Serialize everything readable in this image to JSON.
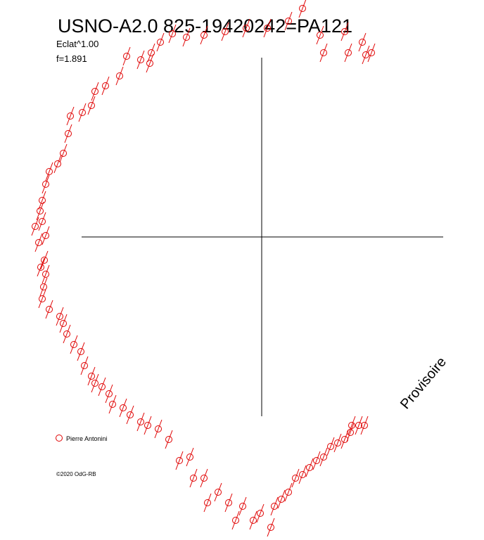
{
  "chart_data": {
    "type": "scatter",
    "title": "USNO-A2.0 825-19420242=PA121",
    "subtitle": "Eclat^1.00",
    "annotations": [
      "f=1.891",
      "©2020 OdG-RB",
      "Provisoire"
    ],
    "xlim": [
      -372,
      316
    ],
    "ylim": [
      -431,
      337
    ],
    "series": [
      {
        "name": "Pierre Antonini",
        "color": "#e00000",
        "x": [
          58,
          83,
          88,
          118,
          123,
          148,
          143,
          156,
          38,
          8,
          -22,
          -52,
          -82,
          -107,
          -127,
          -144,
          -157,
          -172,
          -159,
          -192,
          -202,
          -222,
          -237,
          -242,
          -255,
          -272,
          -275,
          -282,
          -290,
          -302,
          -307,
          -312,
          -315,
          -312,
          -322,
          -307,
          -317,
          -309,
          -314,
          -307,
          -310,
          -312,
          -302,
          -287,
          -282,
          -277,
          -267,
          -257,
          -252,
          -242,
          -237,
          -227,
          -217,
          -212,
          -197,
          -187,
          -172,
          -162,
          -147,
          -132,
          -117,
          -102,
          -97,
          -82,
          -77,
          -62,
          -47,
          -37,
          -27,
          -12,
          -2,
          13,
          18,
          28,
          38,
          48,
          58,
          68,
          78,
          88,
          98,
          108,
          118,
          126,
          128,
          138,
          146
        ],
        "values": [
          325,
          287,
          262,
          292,
          262,
          259,
          277,
          262,
          307,
          297,
          297,
          292,
          287,
          284,
          289,
          277,
          262,
          252,
          247,
          257,
          229,
          215,
          207,
          187,
          177,
          172,
          147,
          119,
          104,
          93,
          75,
          52,
          37,
          22,
          15,
          2,
          -8,
          -33,
          -43,
          -53,
          -71,
          -88,
          -103,
          -113,
          -123,
          -138,
          -153,
          -163,
          -183,
          -198,
          -208,
          -213,
          -223,
          -238,
          -243,
          -253,
          -263,
          -268,
          -273,
          -288,
          -318,
          -313,
          -343,
          -343,
          -378,
          -363,
          -378,
          -403,
          -383,
          -403,
          -393,
          -413,
          -383,
          -373,
          -363,
          -343,
          -338,
          -328,
          -318,
          -313,
          -298,
          -293,
          -288,
          -278,
          -268,
          -268,
          -268
        ]
      }
    ]
  }
}
